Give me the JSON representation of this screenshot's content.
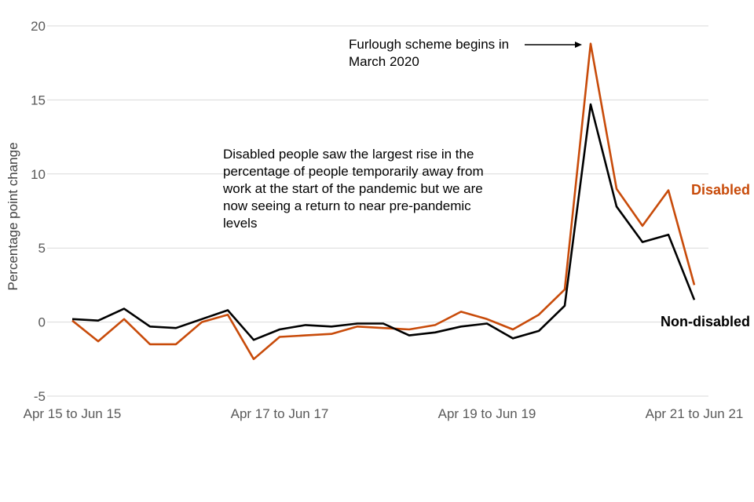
{
  "chart_data": {
    "type": "line",
    "title": "",
    "xlabel": "",
    "ylabel": "Percentage point change",
    "ylim": [
      -5,
      20
    ],
    "yticks": [
      -5,
      0,
      5,
      10,
      15,
      20
    ],
    "grid": true,
    "x_tick_labels": [
      "Apr 15 to Jun 15",
      "Apr 17 to Jun 17",
      "Apr 19 to Jun 19",
      "Apr 21 to Jun 21"
    ],
    "x_tick_positions": [
      0,
      8,
      16,
      24
    ],
    "n_points": 25,
    "series": [
      {
        "name": "Disabled",
        "color": "#c84b0a",
        "values": [
          0.1,
          -1.3,
          0.2,
          -1.5,
          -1.5,
          0.0,
          0.5,
          -2.5,
          -1.0,
          -0.9,
          -0.8,
          -0.3,
          -0.4,
          -0.5,
          -0.2,
          0.7,
          0.2,
          -0.5,
          0.5,
          2.2,
          18.8,
          9.0,
          6.5,
          8.9,
          2.5
        ]
      },
      {
        "name": "Non-disabled",
        "color": "#000000",
        "values": [
          0.2,
          0.1,
          0.9,
          -0.3,
          -0.4,
          0.2,
          0.8,
          -1.2,
          -0.5,
          -0.2,
          -0.3,
          -0.1,
          -0.1,
          -0.9,
          -0.7,
          -0.3,
          -0.1,
          -1.1,
          -0.6,
          1.1,
          14.7,
          7.8,
          5.4,
          5.9,
          1.5
        ]
      }
    ],
    "annotations": {
      "furlough": "Furlough scheme begins in March 2020",
      "disabled_note": "Disabled people saw the largest rise in the percentage of people temporarily away from work at the start of the pandemic but we are now seeing a return to near pre-pandemic levels"
    }
  }
}
